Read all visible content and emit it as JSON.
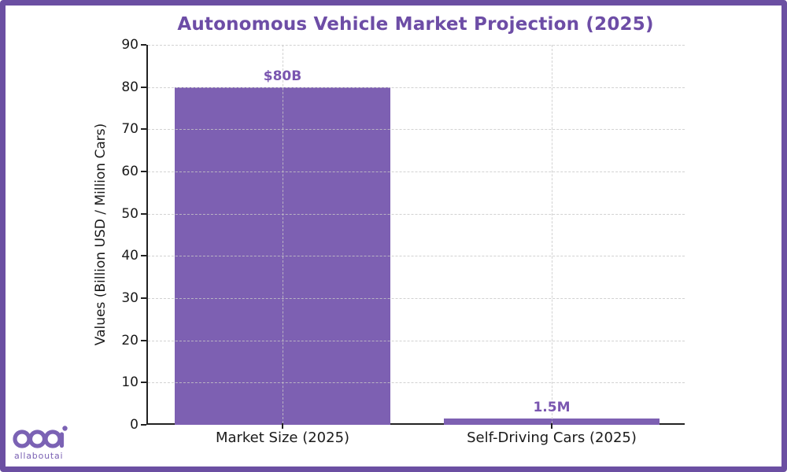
{
  "frame": {
    "background_color": "#ffffff",
    "border_color": "#6b4fa2"
  },
  "chart_data": {
    "type": "bar",
    "title": "Autonomous Vehicle Market Projection (2025)",
    "xlabel": "",
    "ylabel": "Values (Billion USD / Million Cars)",
    "categories": [
      "Market Size (2025)",
      "Self-Driving Cars (2025)"
    ],
    "values": [
      80,
      1.5
    ],
    "value_labels": [
      "$80B",
      "1.5M"
    ],
    "ylim": [
      0,
      90
    ],
    "yticks": [
      0,
      10,
      20,
      30,
      40,
      50,
      60,
      70,
      80,
      90
    ],
    "grid": true,
    "legend_position": "none",
    "bar_color": "#7d60b2",
    "title_color": "#6d4da6",
    "value_label_color": "#7a56b0"
  },
  "branding": {
    "logo_subtext": "allaboutai",
    "logo_color": "#7b62b4"
  }
}
